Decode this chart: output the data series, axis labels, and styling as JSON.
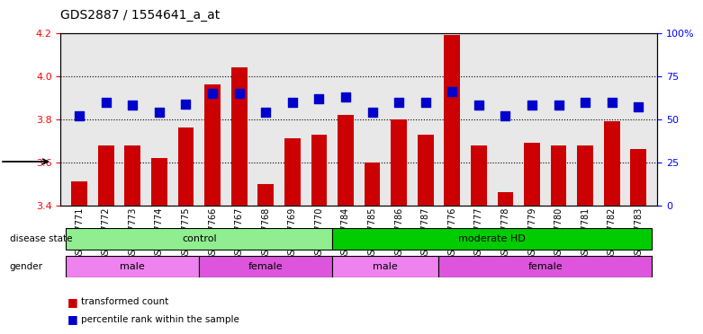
{
  "title": "GDS2887 / 1554641_a_at",
  "samples": [
    "GSM217771",
    "GSM217772",
    "GSM217773",
    "GSM217774",
    "GSM217775",
    "GSM217766",
    "GSM217767",
    "GSM217768",
    "GSM217769",
    "GSM217770",
    "GSM217784",
    "GSM217785",
    "GSM217786",
    "GSM217787",
    "GSM217776",
    "GSM217777",
    "GSM217778",
    "GSM217779",
    "GSM217780",
    "GSM217781",
    "GSM217782",
    "GSM217783"
  ],
  "transformed_count": [
    3.51,
    3.68,
    3.68,
    3.62,
    3.76,
    3.96,
    4.04,
    3.5,
    3.71,
    3.73,
    3.82,
    3.6,
    3.8,
    3.73,
    4.19,
    3.68,
    3.46,
    3.69,
    3.68,
    3.68,
    3.79,
    3.66
  ],
  "percentile_rank": [
    52,
    60,
    58,
    54,
    59,
    65,
    65,
    54,
    60,
    62,
    63,
    54,
    60,
    60,
    66,
    58,
    52,
    58,
    58,
    60,
    60,
    57
  ],
  "ylim_left": [
    3.4,
    4.2
  ],
  "ylim_right": [
    0,
    100
  ],
  "yticks_left": [
    3.4,
    3.6,
    3.8,
    4.0,
    4.2
  ],
  "yticks_right": [
    0,
    25,
    50,
    75,
    100
  ],
  "ytick_labels_right": [
    "0",
    "25",
    "50",
    "75",
    "100%"
  ],
  "bar_color": "#cc0000",
  "dot_color": "#0000cc",
  "disease_state_groups": [
    {
      "label": "control",
      "start": 0,
      "end": 10,
      "color": "#90ee90"
    },
    {
      "label": "moderate HD",
      "start": 10,
      "end": 22,
      "color": "#00cc00"
    }
  ],
  "gender_groups": [
    {
      "label": "male",
      "start": 0,
      "end": 5,
      "color": "#ee82ee"
    },
    {
      "label": "female",
      "start": 5,
      "end": 10,
      "color": "#dd55dd"
    },
    {
      "label": "male",
      "start": 10,
      "end": 14,
      "color": "#ee82ee"
    },
    {
      "label": "female",
      "start": 14,
      "end": 22,
      "color": "#dd55dd"
    }
  ],
  "bar_width": 0.6,
  "dot_size": 45,
  "xlabel_fontsize": 7,
  "tick_fontsize": 8,
  "title_fontsize": 10
}
